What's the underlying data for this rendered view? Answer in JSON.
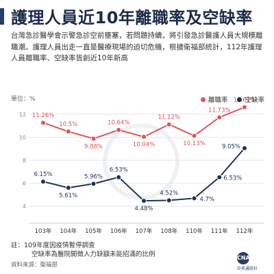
{
  "title": "護理人員近10年離職率及空缺率",
  "intro": "台灣急診醫學會示警急診空前壅塞，若問題持續，將引發急診醫護人員大規模離職潮。護理人員出走一直是醫療現場的迫切危機，根據衛福部統計，112年護理人員離職率、空缺率皆創近10年新高",
  "unit_label": "單位：%",
  "legend": [
    {
      "label": "離職率",
      "color": "#e0525a"
    },
    {
      "label": "空缺率",
      "color": "#1f2f5c"
    }
  ],
  "notes": {
    "line1": "註：109年度因疫情暫停調查",
    "line2": "空缺率為醫院開徵人力缺額未能招滿的比例"
  },
  "source": "資料來源：衛福部",
  "logo": {
    "mark": "CNA",
    "name": "中央通訊社"
  },
  "chart_data": {
    "type": "line",
    "title": "護理人員近10年離職率及空缺率",
    "ylabel": "單位：%",
    "categories": [
      "103年",
      "104年",
      "105年",
      "106年",
      "107年",
      "108年",
      "110年",
      "111年",
      "112年"
    ],
    "ylim": [
      3,
      13
    ],
    "yticks": [
      4,
      6,
      8,
      10,
      12
    ],
    "grid": true,
    "legend_position": "top-right",
    "series": [
      {
        "name": "離職率",
        "color": "#e0525a",
        "values": [
          11.26,
          10.5,
          9.88,
          10.64,
          10.04,
          11.12,
          10.13,
          11.73,
          12.61
        ],
        "labels": [
          "11.26%",
          "10.5%",
          "9.88%",
          "10.64%",
          "10.04%",
          "11.12%",
          "10.13%",
          "11.73%",
          "12.61%"
        ]
      },
      {
        "name": "空缺率",
        "color": "#1f2f5c",
        "values": [
          6.15,
          5.61,
          5.96,
          6.53,
          4.48,
          4.52,
          4.7,
          6.53,
          9.05
        ],
        "labels": [
          "6.15%",
          "5.61%",
          "5.96%",
          "6.53%",
          "4.48%",
          "4.52%",
          "4.7%",
          "6.53%",
          "9.05%"
        ]
      }
    ]
  }
}
